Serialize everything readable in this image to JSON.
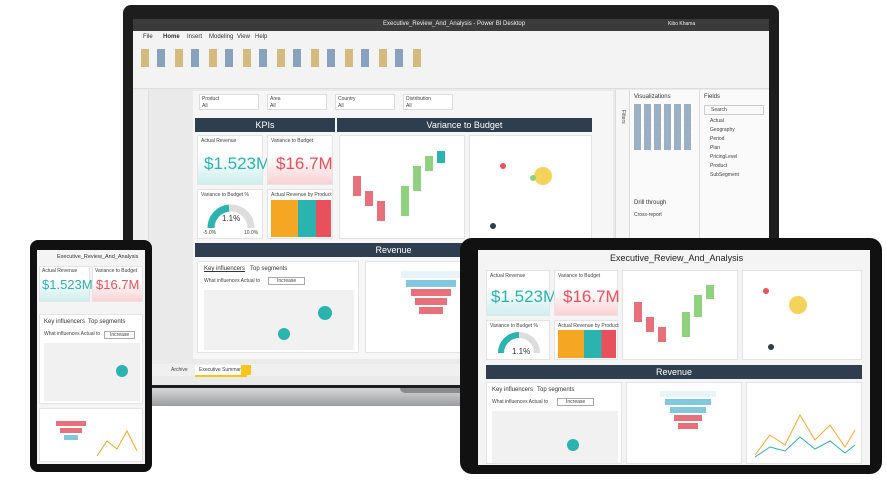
{
  "laptop": {
    "window_title": "Executive_Review_And_Analysis - Power BI Desktop",
    "user": "Kibo Khama",
    "tabs": [
      "File",
      "Home",
      "Insert",
      "Modeling",
      "View",
      "Help"
    ],
    "slicers": [
      {
        "label": "Product",
        "value": "All"
      },
      {
        "label": "Area",
        "value": "All"
      },
      {
        "label": "Country",
        "value": "All"
      },
      {
        "label": "Distribution",
        "value": "All"
      }
    ],
    "kpis_header": "KPIs",
    "variance_header": "Variance to Budget",
    "revenue_header": "Revenue",
    "cards": [
      {
        "label": "Actual Revenue",
        "value": "$1.523M"
      },
      {
        "label": "Variance to Budget",
        "value": "$16.7M"
      }
    ],
    "gauge": {
      "label": "Variance to Budget %",
      "value": "1.1%",
      "min": "-5.0%",
      "max": "10.0%"
    },
    "treemap_title": "Actual Revenue by Product",
    "influencers": {
      "tab1": "Key influencers",
      "tab2": "Top segments",
      "question": "What influences Actual to",
      "option": "Increase"
    },
    "page_tabs": [
      "Archive",
      "Executive Summary"
    ],
    "visualizations": "Visualizations",
    "fields": "Fields",
    "filters": "Filters",
    "search": "Search",
    "field_items": [
      "Actual",
      "Geography",
      "Period",
      "Plan",
      "PricingLevel",
      "Product",
      "SubSegment"
    ],
    "drill": "Drill through",
    "cross_report": "Cross-report"
  },
  "tablet": {
    "title": "Executive_Review_And_Analysis",
    "cards": [
      {
        "label": "Actual Revenue",
        "value": "$1.523M"
      },
      {
        "label": "Variance to Budget",
        "value": "$16.7M"
      }
    ],
    "gauge_label": "Variance to Budget %",
    "gauge_value": "1.1%",
    "treemap_title": "Actual Revenue by Product",
    "revenue_header": "Revenue",
    "tab1": "Key influencers",
    "tab2": "Top segments",
    "question": "What influences Actual to",
    "option": "Increase"
  },
  "phone": {
    "title": "Executive_Review_And_Analysis",
    "cards": [
      {
        "label": "Actual Revenue",
        "value": "$1.523M"
      },
      {
        "label": "Variance to Budget",
        "value": "$16.7M"
      }
    ],
    "tab1": "Key influencers",
    "tab2": "Top segments",
    "question": "What influences Actual to",
    "option": "Increase"
  }
}
